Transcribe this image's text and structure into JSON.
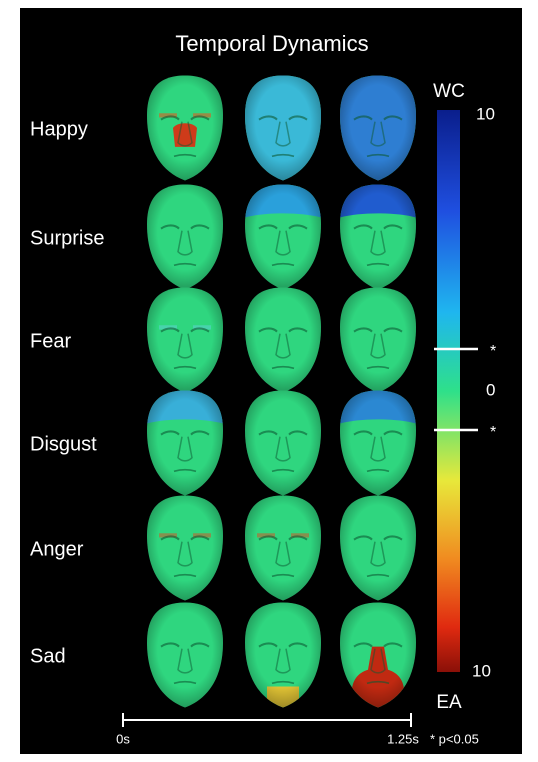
{
  "title": "Temporal Dynamics",
  "rows": [
    "Happy",
    "Surprise",
    "Fear",
    "Disgust",
    "Anger",
    "Sad"
  ],
  "colorbar": {
    "top_label": "WC",
    "top_value": "10",
    "mid_value": "0",
    "bottom_value": "10",
    "bottom_label": "EA",
    "marks": [
      "*",
      "*"
    ]
  },
  "time_axis": {
    "start": "0s",
    "end": "1.25s"
  },
  "footnote": "* p<0.05"
}
